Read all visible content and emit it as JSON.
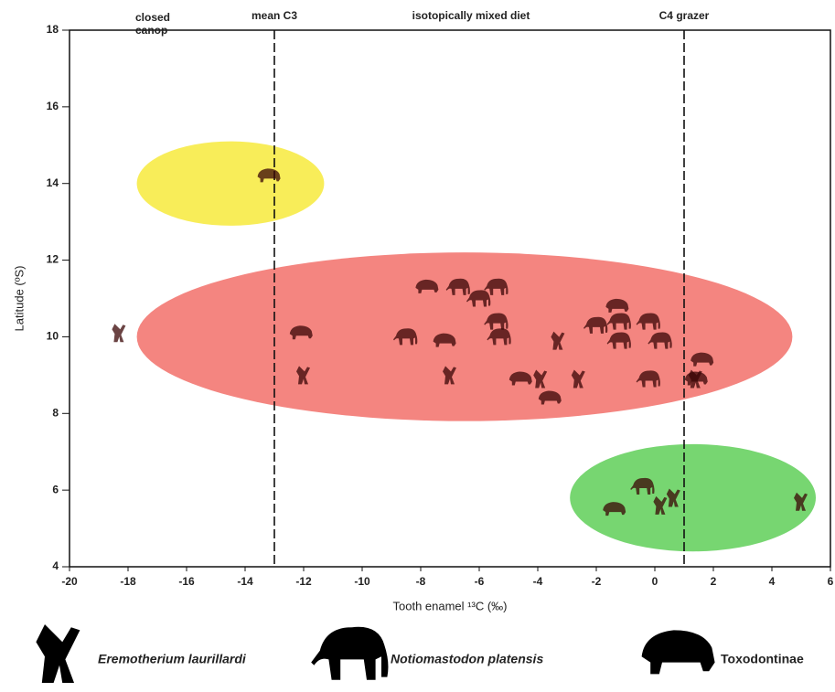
{
  "chart_data": {
    "type": "scatter",
    "xlabel": "Tooth enamel ¹³C (‰)",
    "ylabel": "Latitude (ºS)",
    "xlim": [
      -20,
      6
    ],
    "xticks": [
      -20,
      -18,
      -16,
      -14,
      -12,
      -10,
      -8,
      -6,
      -4,
      -2,
      0,
      2,
      4,
      6
    ],
    "ylim": [
      4,
      18
    ],
    "yticks": [
      4,
      6,
      8,
      10,
      12,
      14,
      16,
      18
    ],
    "annotations": [
      "closed",
      "canop",
      "isotopically mixed diet"
    ],
    "reference_lines": [
      {
        "value": -13,
        "label": "mean C3"
      },
      {
        "value": 1,
        "label": "C4 grazer"
      }
    ],
    "regions": [
      {
        "xlim": [
          -17.7,
          -11.3
        ],
        "ylim": [
          12.9,
          15.1
        ],
        "color": "#f7ea3c"
      },
      {
        "xlim": [
          -17.7,
          4.7
        ],
        "ylim": [
          7.8,
          12.2
        ],
        "color": "#f2706a"
      },
      {
        "xlim": [
          -2.9,
          5.5
        ],
        "ylim": [
          4.4,
          7.2
        ],
        "color": "#5fcf58"
      }
    ],
    "series": [
      {
        "name": "Eremotherium laurillardi",
        "color": "#3a0606",
        "x": [
          -18.3,
          -12.0,
          -7.0,
          -3.9,
          -2.6,
          -3.3,
          1.4,
          0.2,
          0.65,
          5.0
        ],
        "values": [
          10.1,
          9.0,
          9.0,
          8.9,
          8.9,
          9.9,
          8.9,
          5.6,
          5.8,
          5.7
        ]
      },
      {
        "name": "Notiomastodon platensis",
        "color": "#3a0606",
        "x": [
          -6.7,
          -5.4,
          -6.0,
          -5.4,
          -5.3,
          -8.5,
          -2.0,
          -1.2,
          -0.2,
          -1.2,
          0.2,
          -0.2,
          -0.4
        ],
        "values": [
          11.3,
          11.3,
          11.0,
          10.4,
          10.0,
          10.0,
          10.3,
          10.4,
          10.4,
          9.9,
          9.9,
          8.9,
          6.1
        ]
      },
      {
        "name": "Toxodontinae",
        "color": "#3a0606",
        "x": [
          -13.2,
          -7.8,
          -12.1,
          -7.2,
          -4.6,
          -3.6,
          -1.3,
          1.6,
          1.4,
          -1.4
        ],
        "values": [
          14.2,
          11.3,
          10.1,
          9.9,
          8.9,
          8.4,
          10.8,
          9.4,
          8.9,
          5.5
        ]
      }
    ]
  }
}
